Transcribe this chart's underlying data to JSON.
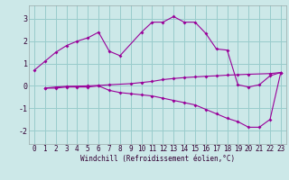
{
  "line1_x": [
    0,
    1,
    2,
    3,
    4,
    5,
    6,
    7,
    8,
    10,
    11,
    12,
    13,
    14,
    15,
    16,
    17,
    18,
    19,
    20,
    21,
    22,
    23
  ],
  "line1_y": [
    0.7,
    1.1,
    1.5,
    1.8,
    2.0,
    2.15,
    2.4,
    1.55,
    1.35,
    2.4,
    2.85,
    2.85,
    3.1,
    2.85,
    2.85,
    2.35,
    1.65,
    1.6,
    0.05,
    -0.05,
    0.05,
    0.45,
    0.6
  ],
  "line2_x": [
    1,
    2,
    3,
    4,
    5,
    6,
    7,
    8,
    9,
    10,
    11,
    12,
    13,
    14,
    15,
    16,
    17,
    18,
    19,
    20,
    21,
    22,
    23
  ],
  "line2_y": [
    -0.1,
    -0.1,
    -0.05,
    -0.05,
    -0.05,
    0.0,
    -0.2,
    -0.3,
    -0.35,
    -0.4,
    -0.45,
    -0.55,
    -0.65,
    -0.75,
    -0.85,
    -1.05,
    -1.25,
    -1.45,
    -1.6,
    -1.85,
    -1.85,
    -1.5,
    0.6
  ],
  "line3_x": [
    1,
    2,
    3,
    5,
    6,
    7,
    9,
    10,
    11,
    12,
    13,
    14,
    15,
    16,
    17,
    18,
    19,
    20,
    22,
    23
  ],
  "line3_y": [
    -0.1,
    -0.05,
    -0.02,
    0.0,
    0.02,
    0.05,
    0.1,
    0.15,
    0.2,
    0.28,
    0.33,
    0.37,
    0.4,
    0.43,
    0.45,
    0.48,
    0.5,
    0.52,
    0.55,
    0.6
  ],
  "color": "#990099",
  "bg_color": "#cce8e8",
  "grid_color": "#99cccc",
  "xlabel": "Windchill (Refroidissement éolien,°C)",
  "xlim": [
    -0.5,
    23.5
  ],
  "ylim": [
    -2.6,
    3.6
  ],
  "yticks": [
    -2,
    -1,
    0,
    1,
    2,
    3
  ],
  "xticks": [
    0,
    1,
    2,
    3,
    4,
    5,
    6,
    7,
    8,
    9,
    10,
    11,
    12,
    13,
    14,
    15,
    16,
    17,
    18,
    19,
    20,
    21,
    22,
    23
  ],
  "marker": "D",
  "markersize": 2.0,
  "linewidth": 0.8,
  "tick_fontsize": 5.5,
  "xlabel_fontsize": 5.5
}
